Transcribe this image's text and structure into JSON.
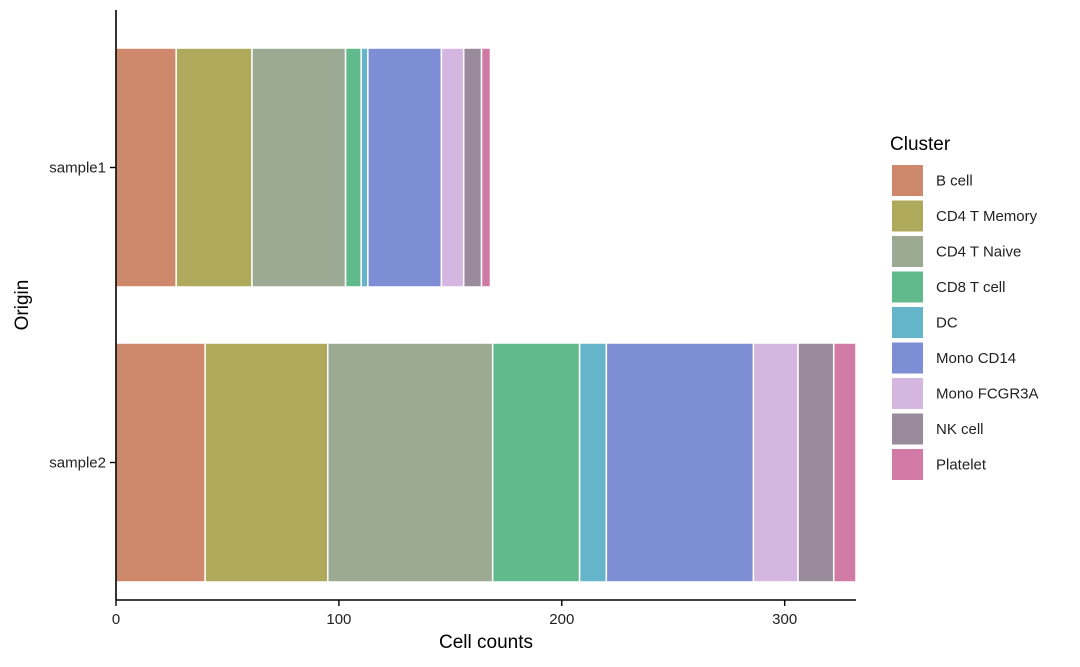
{
  "chart_data": {
    "type": "bar",
    "orientation": "horizontal",
    "stacked": true,
    "categories": [
      "sample1",
      "sample2"
    ],
    "series": [
      {
        "name": "B cell",
        "color": "#CE896C",
        "values": [
          27,
          40
        ]
      },
      {
        "name": "CD4 T Memory",
        "color": "#AFA95C",
        "values": [
          34,
          55
        ]
      },
      {
        "name": "CD4 T Naive",
        "color": "#9DAA93",
        "values": [
          42,
          74
        ]
      },
      {
        "name": "CD8 T cell",
        "color": "#61BA8C",
        "values": [
          7,
          39
        ]
      },
      {
        "name": "DC",
        "color": "#64B5CA",
        "values": [
          3,
          12
        ]
      },
      {
        "name": "Mono CD14",
        "color": "#7E8ED5",
        "values": [
          33,
          66
        ]
      },
      {
        "name": "Mono FCGR3A",
        "color": "#D5B6E0",
        "values": [
          10,
          20
        ]
      },
      {
        "name": "NK cell",
        "color": "#998A9C",
        "values": [
          8,
          16
        ]
      },
      {
        "name": "Platelet",
        "color": "#D17AA5",
        "values": [
          4,
          10
        ]
      }
    ],
    "xlabel": "Cell counts",
    "ylabel": "Origin",
    "xlim": [
      0,
      332
    ],
    "xticks": [
      0,
      100,
      200,
      300
    ],
    "grid": false,
    "legend": {
      "title": "Cluster",
      "position": "right"
    }
  }
}
